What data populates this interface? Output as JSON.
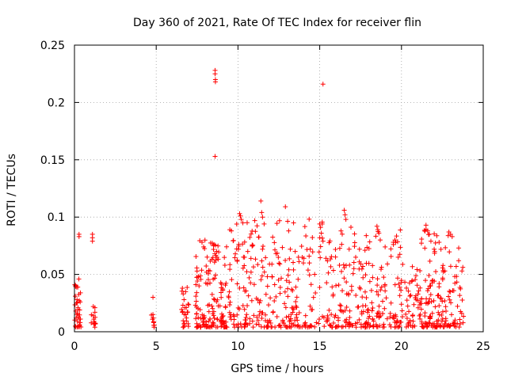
{
  "chart_data": {
    "type": "scatter",
    "title": "Day 360 of 2021, Rate Of TEC Index for receiver flin",
    "xlabel": "GPS time / hours",
    "ylabel": "ROTI / TECUs",
    "xlim": [
      0,
      25
    ],
    "ylim": [
      0,
      0.25
    ],
    "xticks": [
      0,
      5,
      10,
      15,
      20,
      25
    ],
    "xtick_labels": [
      "0",
      "5",
      "10",
      "15",
      "20",
      "25"
    ],
    "yticks": [
      0,
      0.05,
      0.1,
      0.15,
      0.2,
      0.25
    ],
    "ytick_labels": [
      "0",
      "0.05",
      "0.1",
      "0.15",
      "0.2",
      "0.25"
    ],
    "grid": true,
    "marker": "+",
    "color": "#ff0000",
    "clusters": [
      {
        "x_start": 0.0,
        "x_end": 0.4,
        "y_max": 0.045,
        "density": 22
      },
      {
        "x_start": 1.0,
        "x_end": 1.3,
        "y_max": 0.022,
        "density": 10
      },
      {
        "x_start": 4.7,
        "x_end": 4.9,
        "y_max": 0.015,
        "density": 5
      },
      {
        "x_start": 6.5,
        "x_end": 7.0,
        "y_max": 0.04,
        "density": 20
      },
      {
        "x_start": 7.4,
        "x_end": 9.9,
        "y_max": 0.08,
        "density": 170
      },
      {
        "x_start": 9.9,
        "x_end": 11.0,
        "y_max": 0.1,
        "density": 60
      },
      {
        "x_start": 11.0,
        "x_end": 12.8,
        "y_max": 0.1,
        "density": 80
      },
      {
        "x_start": 12.8,
        "x_end": 14.8,
        "y_max": 0.1,
        "density": 90
      },
      {
        "x_start": 14.8,
        "x_end": 17.5,
        "y_max": 0.1,
        "density": 110
      },
      {
        "x_start": 17.5,
        "x_end": 20.0,
        "y_max": 0.09,
        "density": 130
      },
      {
        "x_start": 20.0,
        "x_end": 21.2,
        "y_max": 0.06,
        "density": 50
      },
      {
        "x_start": 21.2,
        "x_end": 22.6,
        "y_max": 0.09,
        "density": 100
      },
      {
        "x_start": 22.6,
        "x_end": 23.8,
        "y_max": 0.085,
        "density": 55
      }
    ],
    "points": [
      [
        0.02,
        0.041
      ],
      [
        0.05,
        0.031
      ],
      [
        0.08,
        0.018
      ],
      [
        0.1,
        0.012
      ],
      [
        0.12,
        0.025
      ],
      [
        0.15,
        0.015
      ],
      [
        0.18,
        0.009
      ],
      [
        0.2,
        0.016
      ],
      [
        0.22,
        0.021
      ],
      [
        0.25,
        0.013
      ],
      [
        0.27,
        0.046
      ],
      [
        0.28,
        0.085
      ],
      [
        0.28,
        0.083
      ],
      [
        0.3,
        0.011
      ],
      [
        0.3,
        0.005
      ],
      [
        0.32,
        0.019
      ],
      [
        0.35,
        0.026
      ],
      [
        0.35,
        0.008
      ],
      [
        1.1,
        0.085
      ],
      [
        1.1,
        0.082
      ],
      [
        1.1,
        0.079
      ],
      [
        1.15,
        0.022
      ],
      [
        1.15,
        0.014
      ],
      [
        1.18,
        0.011
      ],
      [
        1.2,
        0.009
      ],
      [
        1.25,
        0.021
      ],
      [
        4.8,
        0.03
      ],
      [
        4.8,
        0.015
      ],
      [
        4.82,
        0.012
      ],
      [
        4.85,
        0.008
      ],
      [
        4.87,
        0.004
      ],
      [
        6.6,
        0.038
      ],
      [
        6.65,
        0.033
      ],
      [
        6.7,
        0.028
      ],
      [
        6.75,
        0.021
      ],
      [
        6.8,
        0.035
      ],
      [
        6.85,
        0.012
      ],
      [
        6.9,
        0.017
      ],
      [
        6.95,
        0.007
      ],
      [
        7.8,
        0.078
      ],
      [
        7.9,
        0.074
      ],
      [
        8.6,
        0.228
      ],
      [
        8.6,
        0.225
      ],
      [
        8.62,
        0.22
      ],
      [
        8.62,
        0.218
      ],
      [
        8.6,
        0.153
      ],
      [
        8.5,
        0.075
      ],
      [
        8.7,
        0.07
      ],
      [
        9.2,
        0.058
      ],
      [
        9.5,
        0.089
      ],
      [
        9.6,
        0.088
      ],
      [
        10.1,
        0.103
      ],
      [
        10.15,
        0.101
      ],
      [
        10.2,
        0.098
      ],
      [
        10.3,
        0.095
      ],
      [
        10.4,
        0.065
      ],
      [
        10.6,
        0.07
      ],
      [
        10.8,
        0.052
      ],
      [
        11.4,
        0.114
      ],
      [
        11.45,
        0.104
      ],
      [
        11.5,
        0.1
      ],
      [
        11.6,
        0.094
      ],
      [
        11.5,
        0.072
      ],
      [
        12.9,
        0.109
      ],
      [
        13.1,
        0.088
      ],
      [
        13.2,
        0.072
      ],
      [
        13.4,
        0.095
      ],
      [
        13.5,
        0.07
      ],
      [
        13.7,
        0.065
      ],
      [
        14.0,
        0.06
      ],
      [
        15.2,
        0.216
      ],
      [
        15.0,
        0.094
      ],
      [
        15.05,
        0.091
      ],
      [
        15.1,
        0.086
      ],
      [
        15.0,
        0.082
      ],
      [
        15.2,
        0.079
      ],
      [
        16.5,
        0.106
      ],
      [
        16.55,
        0.102
      ],
      [
        16.6,
        0.098
      ],
      [
        16.3,
        0.088
      ],
      [
        16.8,
        0.072
      ],
      [
        17.2,
        0.065
      ],
      [
        18.5,
        0.092
      ],
      [
        18.55,
        0.089
      ],
      [
        18.7,
        0.08
      ],
      [
        19.0,
        0.074
      ],
      [
        19.5,
        0.078
      ],
      [
        19.6,
        0.08
      ],
      [
        19.8,
        0.065
      ],
      [
        21.5,
        0.093
      ],
      [
        21.6,
        0.088
      ],
      [
        21.7,
        0.085
      ],
      [
        21.8,
        0.079
      ],
      [
        22.0,
        0.072
      ],
      [
        22.3,
        0.078
      ],
      [
        22.9,
        0.087
      ],
      [
        23.0,
        0.085
      ],
      [
        23.1,
        0.083
      ],
      [
        23.5,
        0.073
      ],
      [
        23.5,
        0.062
      ]
    ]
  }
}
